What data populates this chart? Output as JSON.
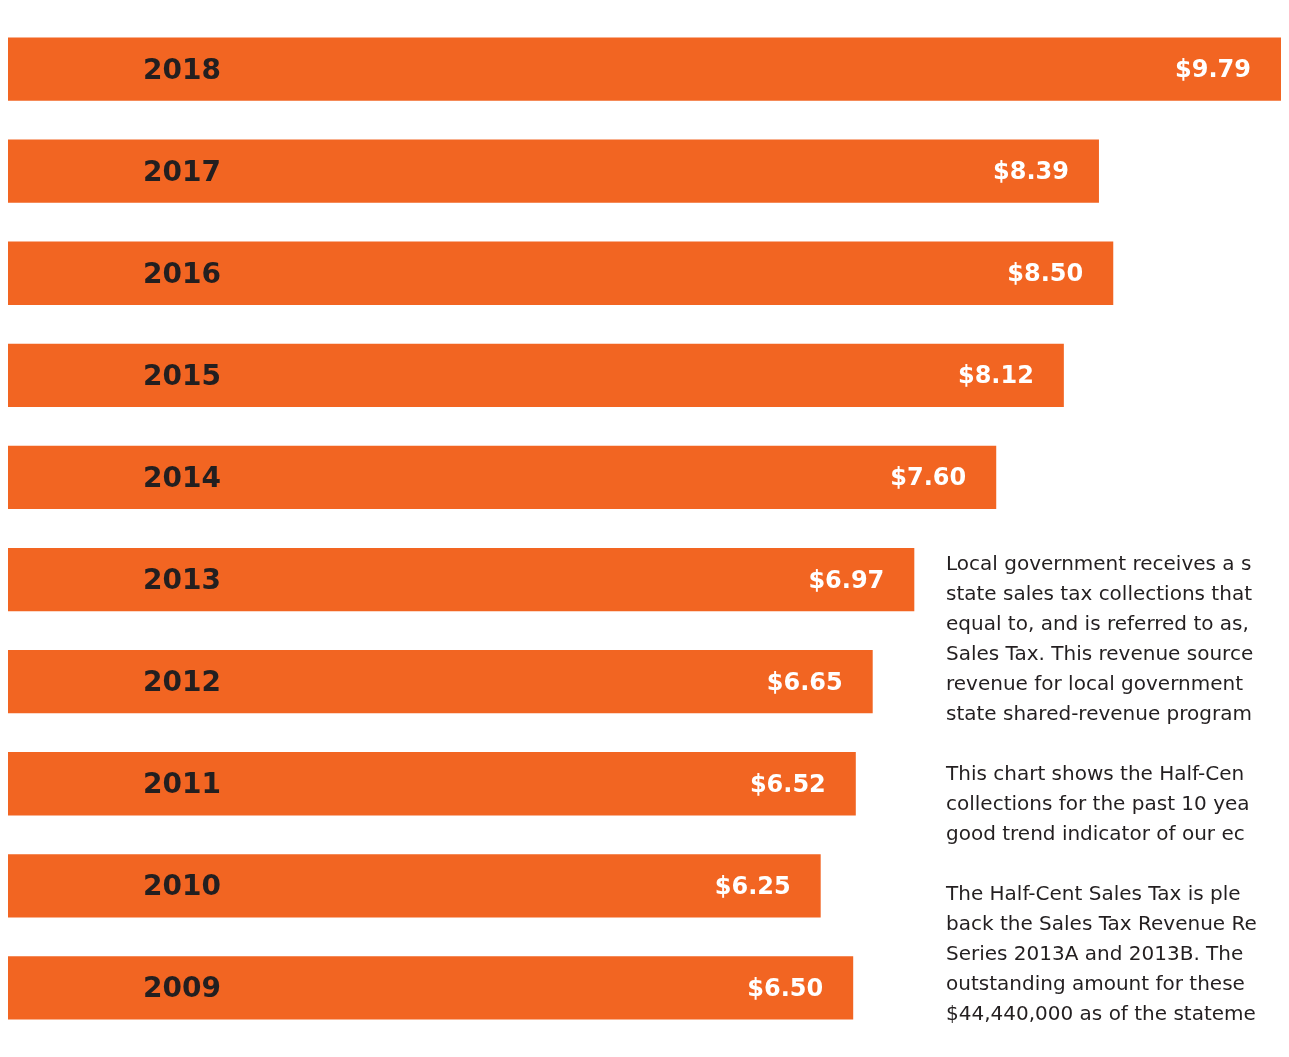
{
  "chart_data": {
    "type": "bar",
    "orientation": "horizontal",
    "categories": [
      "2018",
      "2017",
      "2016",
      "2015",
      "2014",
      "2013",
      "2012",
      "2011",
      "2010",
      "2009"
    ],
    "values": [
      9.79,
      8.39,
      8.5,
      8.12,
      7.6,
      6.97,
      6.65,
      6.52,
      6.25,
      6.5
    ],
    "value_labels": [
      "$9.79",
      "$8.39",
      "$8.50",
      "$8.12",
      "$7.60",
      "$6.97",
      "$6.65",
      "$6.52",
      "$6.25",
      "$6.50"
    ],
    "color": "#f26522",
    "annotations": [
      "Local government receives a s state sales tax collections that equal to, and is referred to as, Sales Tax. This revenue source revenue for local government state shared-revenue program",
      "This chart shows the Half-Cen collections for the past 10 yea good trend indicator of our ec",
      "The Half-Cent Sales Tax is ple back the Sales Tax Revenue Re Series 2013A and 2013B. The outstanding amount for these $44,440,000 as of the stateme"
    ]
  }
}
